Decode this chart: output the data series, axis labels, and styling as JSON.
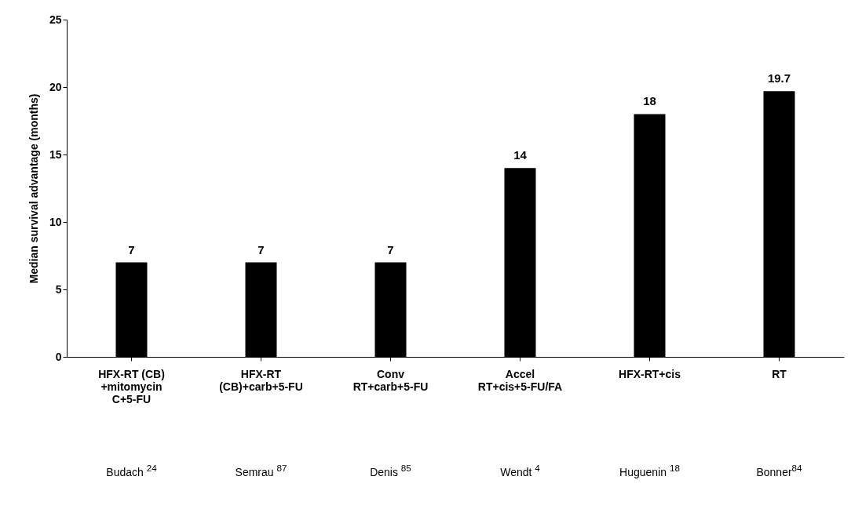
{
  "chart_data": {
    "type": "bar",
    "ylabel": "Median survival advantage (months)",
    "categories": [
      "HFX-RT (CB) +mitomycin C+5-FU",
      "HFX-RT (CB)+carb+5-FU",
      "Conv RT+carb+5-FU",
      "Accel RT+cis+5-FU/FA",
      "HFX-RT+cis",
      "RT"
    ],
    "values": [
      7,
      7,
      7,
      14,
      18,
      19.7
    ],
    "color": "#000000",
    "ylim": [
      0,
      25
    ],
    "yticks": [
      0,
      5,
      10,
      15,
      20,
      25
    ],
    "grid": false,
    "data_labels": true,
    "annotations": [
      "Budach $^{24}$",
      "Semrau $^{87}$",
      "Denis $^{85}$",
      "Wendt $^{4}$",
      "Huguenin $^{18}$",
      "Bonner$^{84}$"
    ]
  }
}
